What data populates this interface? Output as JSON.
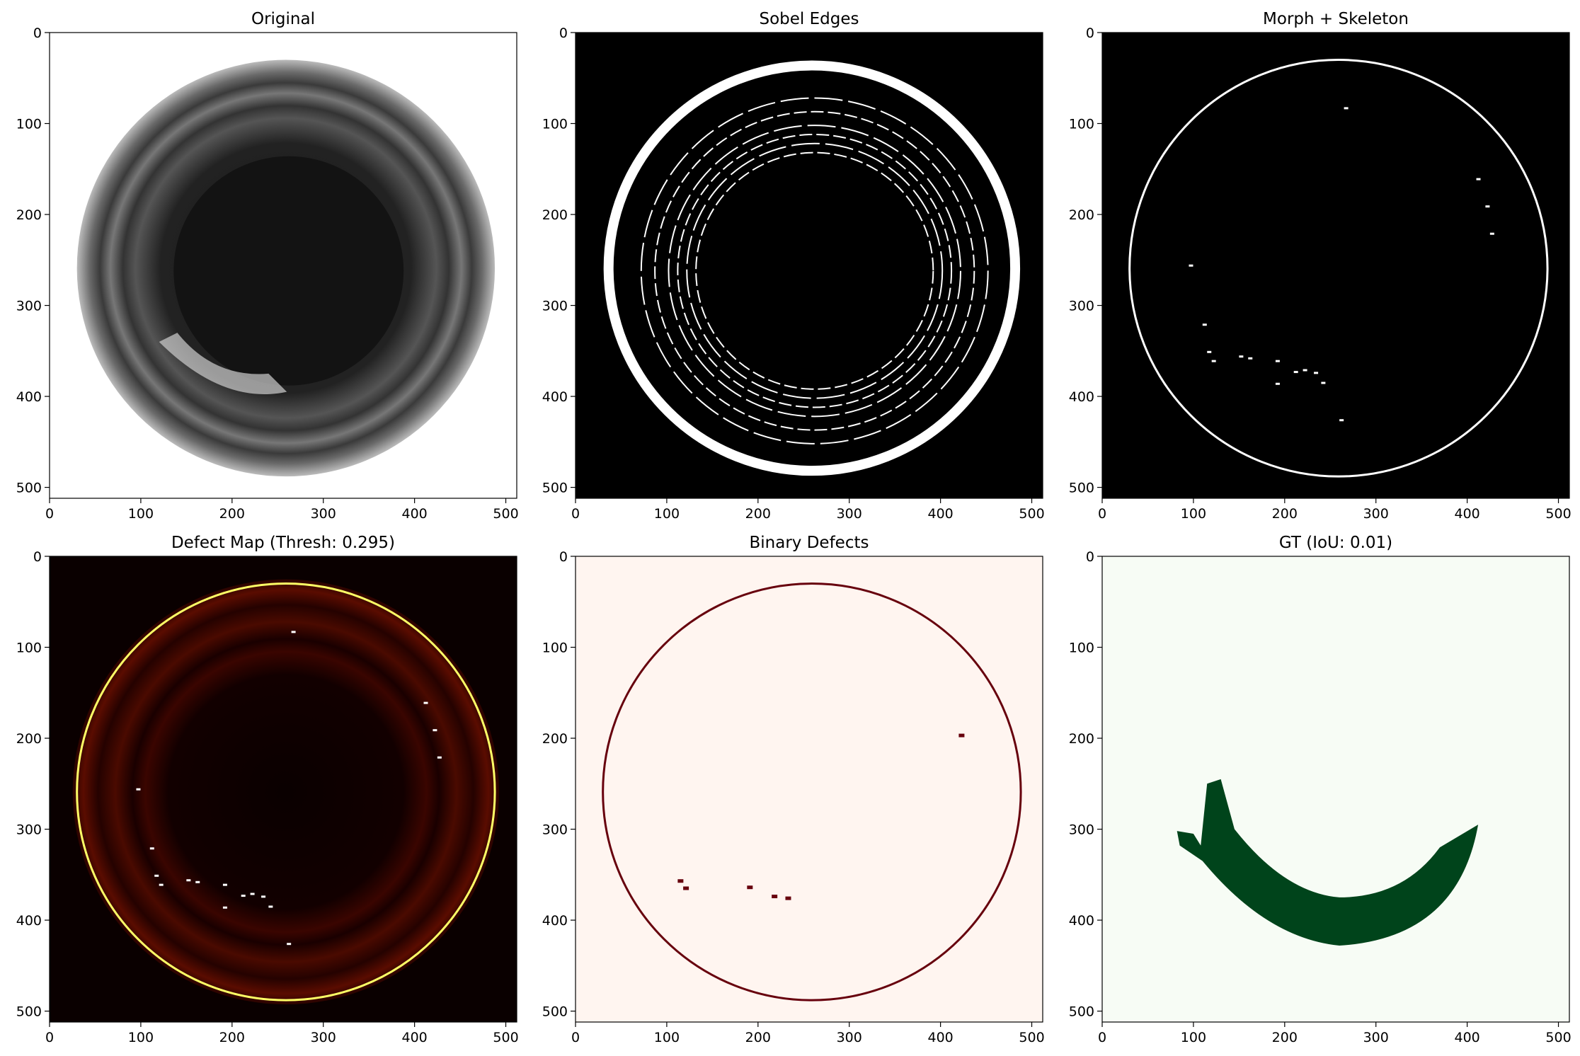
{
  "figure": {
    "panels": [
      {
        "id": "original",
        "title": "Original",
        "style": "bottle-gray"
      },
      {
        "id": "sobel",
        "title": "Sobel Edges",
        "style": "edges"
      },
      {
        "id": "morph",
        "title": "Morph + Skeleton",
        "style": "skeleton"
      },
      {
        "id": "defectmap",
        "title": "Defect Map (Thresh: 0.295)",
        "style": "heatmap"
      },
      {
        "id": "binary",
        "title": "Binary Defects",
        "style": "binary"
      },
      {
        "id": "gt",
        "title": "GT (IoU: 0.01)",
        "style": "groundtruth"
      }
    ],
    "axes": {
      "x_ticks": [
        "0",
        "100",
        "200",
        "300",
        "400",
        "500"
      ],
      "y_ticks": [
        "0",
        "100",
        "200",
        "300",
        "400",
        "500"
      ],
      "range": [
        0,
        512
      ]
    },
    "colors": {
      "binary_background": "#fff5f0",
      "binary_foreground": "#67000d",
      "gt_background": "#f7fcf5",
      "gt_foreground": "#00441b",
      "heat_ring": "#ffff66"
    }
  }
}
